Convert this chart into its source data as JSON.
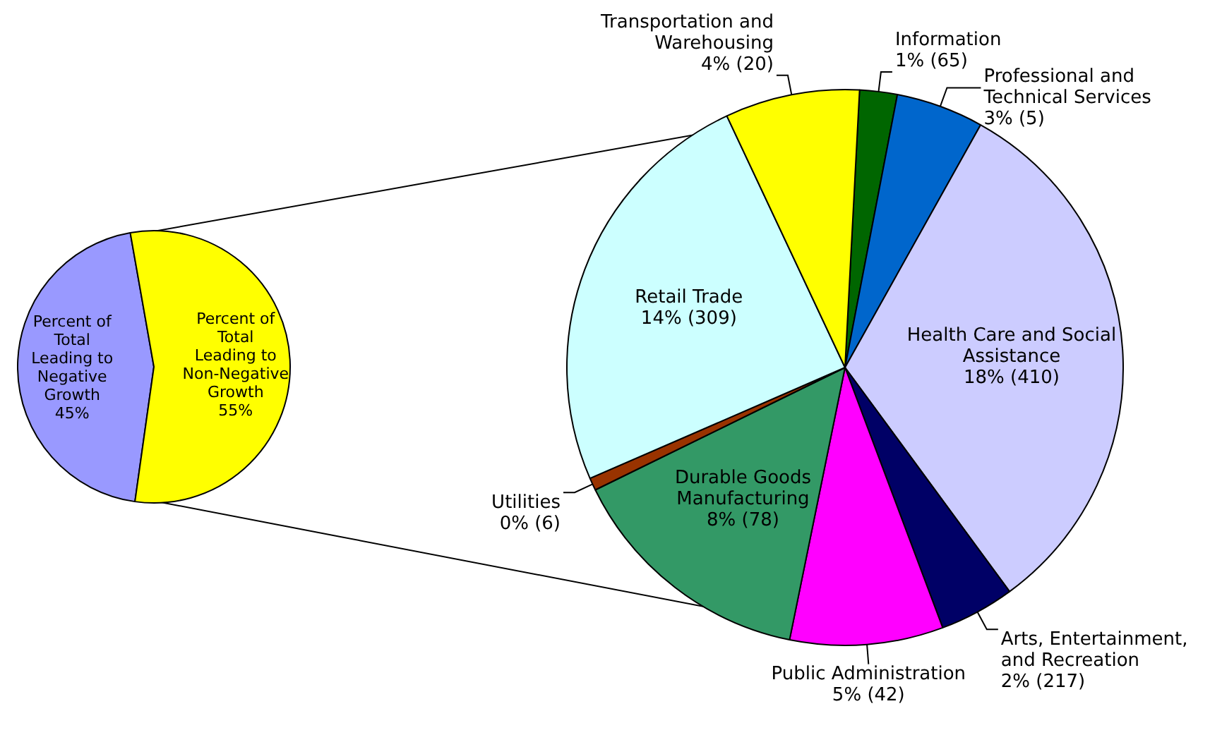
{
  "chart_data": [
    {
      "type": "pie",
      "categories": [
        "Percent of Total Leading to Negative Growth",
        "Percent of Total Leading to Non-Negative Growth"
      ],
      "values": [
        45,
        55
      ],
      "colors": [
        "#9999ff",
        "#ffff00"
      ],
      "value_labels": [
        "45%",
        "55%"
      ]
    },
    {
      "type": "pie",
      "categories": [
        "Information",
        "Professional and Technical Services",
        "Health Care and Social Assistance",
        "Arts, Entertainment, and Recreation",
        "Public Administration",
        "Durable Goods Manufacturing",
        "Utilities",
        "Retail Trade",
        "Transportation and Warehousing"
      ],
      "values": [
        1.2,
        2.8,
        17.5,
        2.4,
        4.9,
        8.0,
        0.4,
        13.5,
        4.3
      ],
      "colors": [
        "#006600",
        "#0066cc",
        "#ccccff",
        "#000066",
        "#ff00ff",
        "#339966",
        "#993300",
        "#ccffff",
        "#ffff00"
      ],
      "value_labels": [
        "1% (65)",
        "3% (5)",
        "18% (410)",
        "2% (217)",
        "5% (42)",
        "8% (78)",
        "0% (6)",
        "14% (309)",
        "4% (20)"
      ]
    }
  ]
}
